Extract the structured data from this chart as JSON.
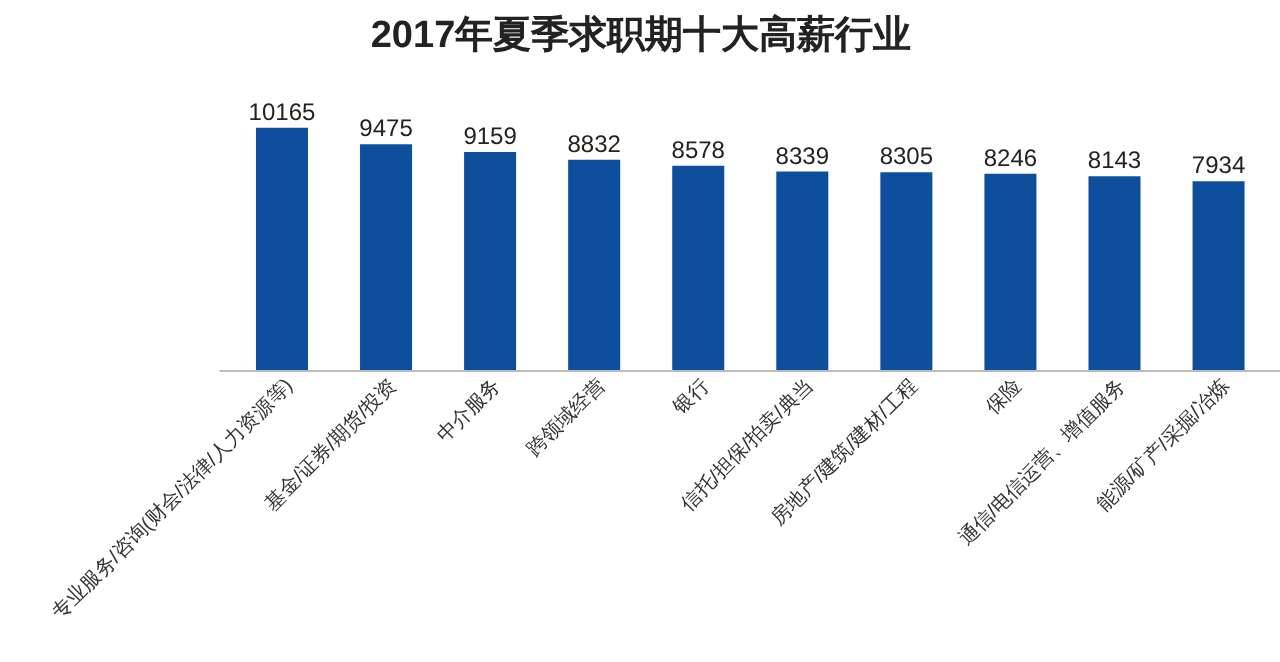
{
  "chart_data": {
    "type": "bar",
    "title": "2017年夏季求职期十大高薪行业",
    "categories": [
      "专业服务/咨询(财会/法律/人力资源等)",
      "基金/证券/期货/投资",
      "中介服务",
      "跨领域经营",
      "银行",
      "信托/担保/拍卖/典当",
      "房地产/建筑/建材/工程",
      "保险",
      "通信/电信运营、增值服务",
      "能源/矿产/采掘/冶炼"
    ],
    "values": [
      10165,
      9475,
      9159,
      8832,
      8578,
      8339,
      8305,
      8246,
      8143,
      7934
    ],
    "color": "#0d4f9c",
    "data_labels": true
  }
}
